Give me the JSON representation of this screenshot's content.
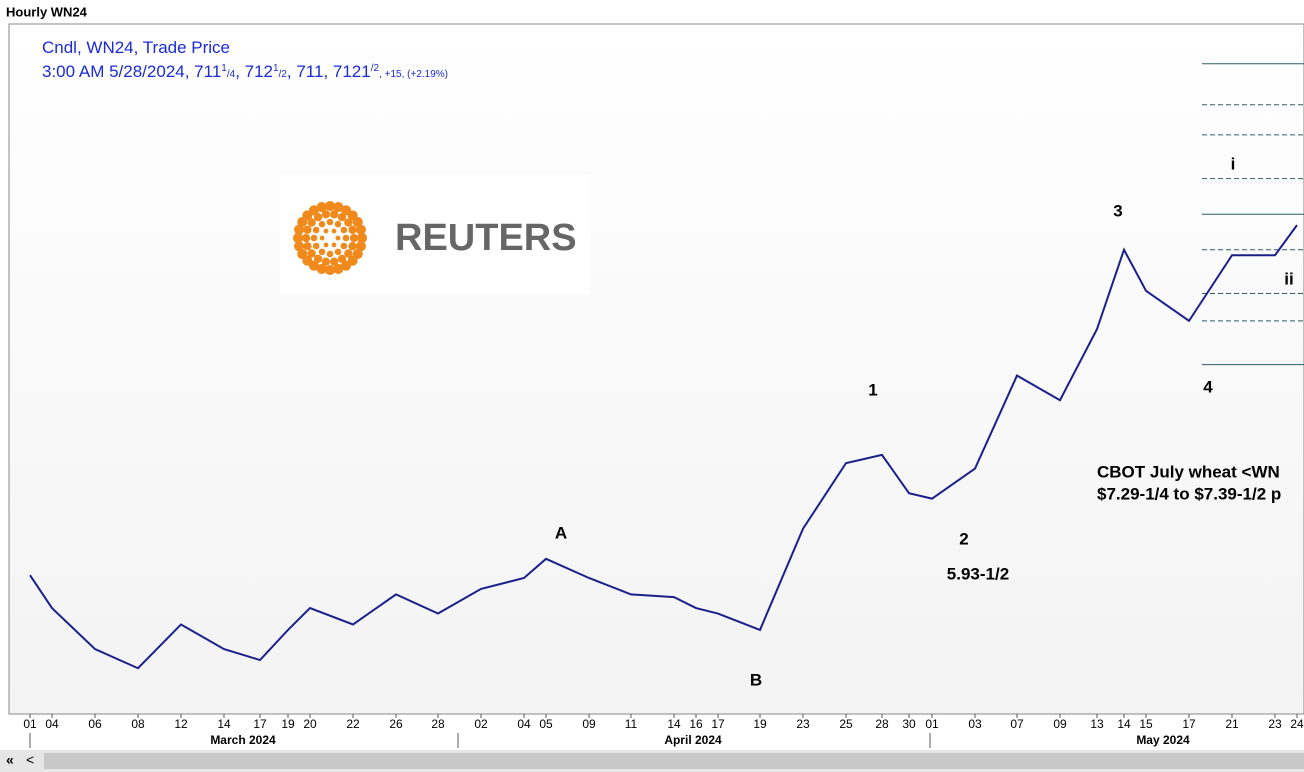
{
  "window_title": "Hourly WN24",
  "header": {
    "line1": "Cndl, WN24, Trade Price",
    "line2": [
      "3:00 AM 5/28/2024, 711",
      "1",
      "/4",
      ", 712",
      "1",
      "/2",
      ", 711, 712",
      "1",
      "/2",
      ", +15, (+2.19%)"
    ]
  },
  "logo": "REUTERS",
  "chart_data": {
    "type": "line",
    "color": "#1b1f8a",
    "categories": [
      "01",
      "04",
      "06",
      "08",
      "12",
      "14",
      "17",
      "19",
      "20",
      "22",
      "26",
      "28",
      "02",
      "04",
      "05",
      "09",
      "11",
      "14",
      "16",
      "17",
      "19",
      "23",
      "25",
      "28",
      "30",
      "01",
      "03",
      "07",
      "09",
      "13",
      "14",
      "15",
      "17",
      "21",
      "23",
      "24"
    ],
    "values": [
      573,
      561,
      546,
      539,
      555,
      546,
      542,
      553,
      561,
      555,
      566,
      559,
      568,
      572,
      579,
      572,
      566,
      565,
      561,
      559,
      553,
      590,
      614,
      617,
      603,
      601,
      612,
      646,
      637,
      663,
      692,
      677,
      666,
      690,
      690,
      701
    ],
    "months": [
      "March 2024",
      "April 2024",
      "May 2024"
    ],
    "ylim": [
      523,
      776
    ],
    "levels": [
      {
        "value": 760,
        "style": "solid"
      },
      {
        "value": 745,
        "style": "dashed"
      },
      {
        "value": 734,
        "style": "dashed"
      },
      {
        "value": 718,
        "style": "dashed"
      },
      {
        "value": 705,
        "style": "solid"
      },
      {
        "value": 692,
        "style": "dashed"
      },
      {
        "value": 676,
        "style": "dashed"
      },
      {
        "value": 666,
        "style": "dashed"
      },
      {
        "value": 650,
        "style": "solid"
      }
    ],
    "annotations": [
      "A",
      "B",
      "1",
      "2",
      "3",
      "4",
      "i",
      "ii",
      "5.93-1/2"
    ],
    "note": [
      "CBOT July wheat <WN",
      "$7.29-1/4 to $7.39-1/2 p"
    ]
  }
}
